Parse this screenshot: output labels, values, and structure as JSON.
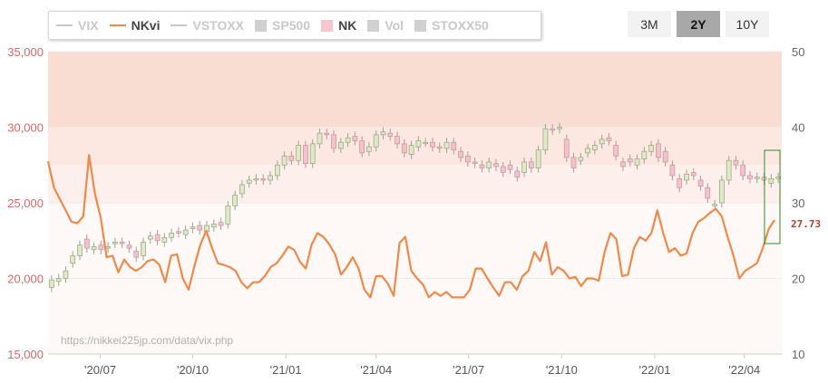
{
  "legend": [
    {
      "key": "vix",
      "label": "VIX",
      "kind": "line",
      "color": "#c8c8c8",
      "active": false
    },
    {
      "key": "nkvi",
      "label": "NKvi",
      "kind": "line",
      "color": "#f0894a",
      "active": true
    },
    {
      "key": "vstoxx",
      "label": "VSTOXX",
      "kind": "line",
      "color": "#c8c8c8",
      "active": false
    },
    {
      "key": "sp500",
      "label": "SP500",
      "kind": "box",
      "color": "#d0d0d0",
      "active": false
    },
    {
      "key": "nk",
      "label": "NK",
      "kind": "box",
      "color": "#f5c8cd",
      "active": true
    },
    {
      "key": "vol",
      "label": "Vol",
      "kind": "box",
      "color": "#d0d0d0",
      "active": false
    },
    {
      "key": "stoxx50",
      "label": "STOXX50",
      "kind": "box",
      "color": "#d0d0d0",
      "active": false
    }
  ],
  "range_buttons": [
    {
      "label": "3M",
      "active": false
    },
    {
      "label": "2Y",
      "active": true
    },
    {
      "label": "10Y",
      "active": false
    }
  ],
  "watermark": "https://nikkei225jp.com/data/vix.php",
  "chart_data": {
    "type": "line",
    "left_axis": {
      "min": 15000,
      "max": 35000,
      "ticks": [
        "15,000",
        "20,000",
        "25,000",
        "30,000",
        "35,000"
      ],
      "tick_values": [
        15000,
        20000,
        25000,
        30000,
        35000
      ],
      "color": "#e06666"
    },
    "right_axis": {
      "min": 10,
      "max": 50,
      "ticks": [
        "10",
        "20",
        "30",
        "40",
        "50"
      ],
      "tick_values": [
        10,
        20,
        30,
        40,
        50
      ]
    },
    "x_ticks": [
      {
        "label": "'20/07",
        "week": 7.4
      },
      {
        "label": "'20/10",
        "week": 20.5
      },
      {
        "label": "'21/01",
        "week": 33.7
      },
      {
        "label": "'21/04",
        "week": 46.5
      },
      {
        "label": "'21/07",
        "week": 59.6
      },
      {
        "label": "'21/10",
        "week": 72.8
      },
      {
        "label": "'22/01",
        "week": 86.0
      },
      {
        "label": "'22/04",
        "week": 98.7
      }
    ],
    "x_range": [
      0,
      104
    ],
    "bands": [
      {
        "from": 40,
        "to": 50,
        "color": "#f9dcd2"
      },
      {
        "from": 35,
        "to": 40,
        "color": "#fce8e0"
      },
      {
        "from": 30,
        "to": 35,
        "color": "#fdf0ec"
      },
      {
        "from": 10,
        "to": 30,
        "color": "#fef9f7"
      }
    ],
    "last_value_label": "27.73",
    "nk_candles": [
      [
        19400,
        19900
      ],
      [
        19800,
        20000
      ],
      [
        20000,
        20500
      ],
      [
        21000,
        21500
      ],
      [
        21500,
        22200
      ],
      [
        22600,
        22000
      ],
      [
        21900,
        22100
      ],
      [
        22200,
        21900
      ],
      [
        22000,
        22100
      ],
      [
        22300,
        22400
      ],
      [
        22400,
        22300
      ],
      [
        22200,
        22000
      ],
      [
        21800,
        21400
      ],
      [
        21500,
        22400
      ],
      [
        22600,
        22800
      ],
      [
        22900,
        22500
      ],
      [
        22400,
        22700
      ],
      [
        22700,
        23000
      ],
      [
        23100,
        23000
      ],
      [
        22900,
        23200
      ],
      [
        23300,
        23400
      ],
      [
        23500,
        23200
      ],
      [
        23100,
        23500
      ],
      [
        23400,
        23600
      ],
      [
        23700,
        23500
      ],
      [
        23600,
        24800
      ],
      [
        24800,
        25500
      ],
      [
        25600,
        26200
      ],
      [
        26300,
        26500
      ],
      [
        26500,
        26600
      ],
      [
        26600,
        26500
      ],
      [
        26500,
        26800
      ],
      [
        26800,
        27500
      ],
      [
        27500,
        28100
      ],
      [
        28100,
        27800
      ],
      [
        27800,
        28800
      ],
      [
        28800,
        27600
      ],
      [
        27600,
        28900
      ],
      [
        28900,
        29600
      ],
      [
        29600,
        29500
      ],
      [
        29500,
        28600
      ],
      [
        28600,
        29000
      ],
      [
        29000,
        29300
      ],
      [
        29400,
        29100
      ],
      [
        29100,
        28300
      ],
      [
        28400,
        28700
      ],
      [
        28700,
        29500
      ],
      [
        29500,
        29700
      ],
      [
        29600,
        29400
      ],
      [
        29400,
        28900
      ],
      [
        28900,
        28300
      ],
      [
        28200,
        28800
      ],
      [
        28700,
        29100
      ],
      [
        29000,
        29000
      ],
      [
        29000,
        28700
      ],
      [
        28700,
        28600
      ],
      [
        28600,
        29000
      ],
      [
        29000,
        28500
      ],
      [
        28400,
        28000
      ],
      [
        28100,
        27700
      ],
      [
        27700,
        27600
      ],
      [
        27500,
        27300
      ],
      [
        27300,
        27700
      ],
      [
        27600,
        27400
      ],
      [
        27400,
        27000
      ],
      [
        27500,
        27200
      ],
      [
        27100,
        26700
      ],
      [
        27000,
        27700
      ],
      [
        27700,
        27300
      ],
      [
        27300,
        28500
      ],
      [
        28500,
        29900
      ],
      [
        29900,
        29800
      ],
      [
        29900,
        30000
      ],
      [
        29200,
        28000
      ],
      [
        28000,
        27300
      ],
      [
        27800,
        28000
      ],
      [
        28300,
        28600
      ],
      [
        28500,
        28800
      ],
      [
        28900,
        29200
      ],
      [
        29300,
        29100
      ],
      [
        28800,
        28100
      ],
      [
        27700,
        27400
      ],
      [
        27900,
        27700
      ],
      [
        27500,
        27900
      ],
      [
        27900,
        28400
      ],
      [
        28400,
        28800
      ],
      [
        28900,
        28000
      ],
      [
        28400,
        27700
      ],
      [
        27500,
        26800
      ],
      [
        26600,
        26000
      ],
      [
        26500,
        26900
      ],
      [
        27000,
        26800
      ],
      [
        26500,
        26100
      ],
      [
        26000,
        25300
      ],
      [
        24800,
        24900
      ],
      [
        25000,
        26500
      ],
      [
        26500,
        27800
      ],
      [
        27800,
        27500
      ],
      [
        27500,
        26800
      ],
      [
        26800,
        26600
      ],
      [
        26600,
        26700
      ],
      [
        26700,
        26500
      ],
      [
        26300,
        26600
      ],
      [
        26600,
        26700
      ]
    ],
    "series": [
      {
        "name": "NKvi",
        "color": "#f0894a",
        "values": [
          35.5,
          32,
          30.5,
          29,
          27.5,
          27.3,
          28.2,
          36.3,
          31.2,
          28,
          22.8,
          23,
          20.8,
          22.5,
          21.5,
          21,
          21.5,
          22.3,
          22.5,
          21.8,
          19.5,
          23,
          23.2,
          20,
          18.5,
          21.7,
          24.5,
          26.3,
          24,
          22,
          21.8,
          21.5,
          21,
          19.5,
          18.7,
          19.5,
          19.5,
          20.3,
          21.5,
          22,
          23,
          24.2,
          23.8,
          22.2,
          21.3,
          24.5,
          26,
          25.5,
          24.5,
          23.2,
          20.5,
          21.5,
          22.8,
          21.3,
          18.5,
          17.5,
          20.3,
          20.3,
          19.3,
          17.7,
          24.7,
          25.5,
          21,
          20,
          19.2,
          17.5,
          18.2,
          17.7,
          18.2,
          17.5,
          17.5,
          17.5,
          18.5,
          21.3,
          21.3,
          20,
          18.8,
          17.7,
          19.5,
          19.5,
          18.5,
          20.3,
          21,
          23.5,
          22.3,
          24.8,
          20.5,
          21.5,
          21,
          20,
          20.2,
          19,
          20,
          20,
          19.7,
          23.5,
          26,
          25.2,
          20.3,
          20.5,
          24,
          25.5,
          25,
          26,
          29,
          26,
          23.5,
          24,
          23,
          23.3,
          26,
          27.5,
          28,
          28.7,
          29.2,
          28.2,
          25.5,
          23,
          20,
          21,
          21.5,
          22,
          24,
          26.5,
          27.73
        ]
      }
    ]
  }
}
